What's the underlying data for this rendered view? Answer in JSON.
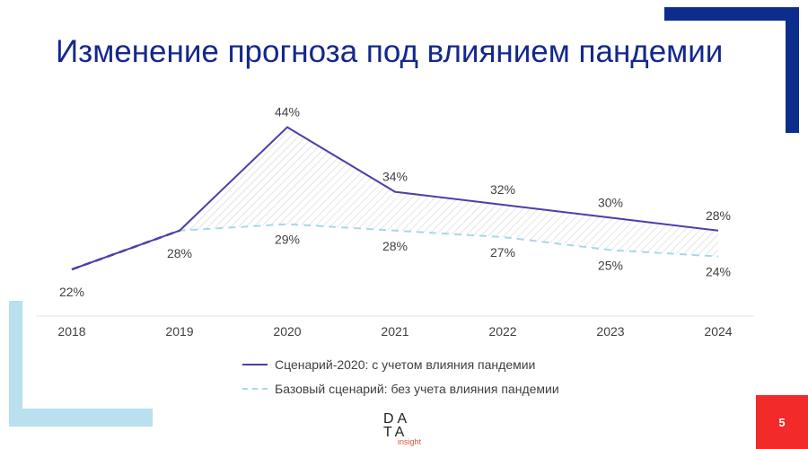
{
  "title": "Изменение прогноза под влиянием пандемии",
  "page_number": "5",
  "logo_text": "DATA insight",
  "colors": {
    "title": "#14288c",
    "scenario": "#4b3fa8",
    "base": "#a8d8e6",
    "accent_red": "#f22a2a",
    "corner_blue": "#0d2d8c",
    "corner_light": "#b9e0ee"
  },
  "chart_data": {
    "type": "line",
    "categories": [
      "2018",
      "2019",
      "2020",
      "2021",
      "2022",
      "2023",
      "2024"
    ],
    "series": [
      {
        "name": "Сценарий-2020: с учетом влияния пандемии",
        "values": [
          22,
          28,
          44,
          34,
          32,
          30,
          28
        ],
        "labels": [
          "22%",
          "28%",
          "44%",
          "34%",
          "32%",
          "30%",
          "28%"
        ],
        "style": "solid"
      },
      {
        "name": "Базовый сценарий: без учета влияния пандемии",
        "values": [
          22,
          28,
          29,
          28,
          27,
          25,
          24
        ],
        "labels": [
          "22%",
          "28%",
          "29%",
          "28%",
          "27%",
          "25%",
          "24%"
        ],
        "style": "dashed"
      }
    ],
    "fill_between": true,
    "legend": "bottom"
  }
}
